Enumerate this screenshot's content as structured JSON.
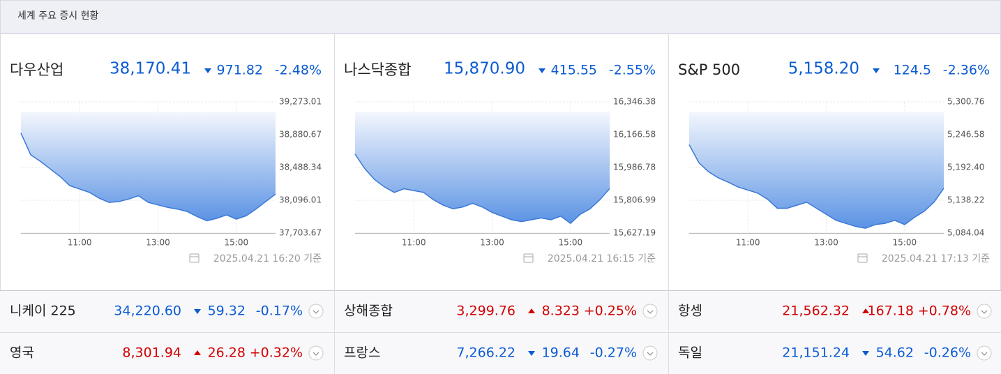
{
  "header": {
    "title": "세계 주요 증시 현황"
  },
  "main_indices": [
    {
      "name": "다우산업",
      "price": "38,170.41",
      "change": "971.82",
      "change_pct": "-2.48%",
      "direction": "down",
      "timestamp": "2025.04.21 16:20 기준",
      "chart_data": {
        "type": "area",
        "color": "#3b78d6",
        "x": [
          9.5,
          9.75,
          10,
          10.25,
          10.5,
          10.75,
          11,
          11.25,
          11.5,
          11.75,
          12,
          12.25,
          12.5,
          12.75,
          13,
          13.25,
          13.5,
          13.75,
          14,
          14.25,
          14.5,
          14.75,
          15,
          15.25,
          15.5,
          15.75,
          16
        ],
        "values": [
          38900,
          38640,
          38560,
          38470,
          38380,
          38270,
          38230,
          38190,
          38120,
          38070,
          38080,
          38110,
          38150,
          38070,
          38040,
          38010,
          37990,
          37960,
          37900,
          37850,
          37880,
          37920,
          37870,
          37910,
          37990,
          38080,
          38170
        ],
        "xlim": [
          9.5,
          16
        ],
        "xticks": [
          {
            "value": 11,
            "label": "11:00"
          },
          {
            "value": 13,
            "label": "13:00"
          },
          {
            "value": 15,
            "label": "15:00"
          }
        ],
        "ylim": [
          37703.67,
          39273.01
        ],
        "yticks": [
          {
            "value": 39273.01,
            "label": "39,273.01"
          },
          {
            "value": 38880.67,
            "label": "38,880.67"
          },
          {
            "value": 38488.34,
            "label": "38,488.34"
          },
          {
            "value": 38096.01,
            "label": "38,096.01"
          },
          {
            "value": 37703.67,
            "label": "37,703.67"
          }
        ]
      }
    },
    {
      "name": "나스닥종합",
      "price": "15,870.90",
      "change": "415.55",
      "change_pct": "-2.55%",
      "direction": "down",
      "timestamp": "2025.04.21 16:15 기준",
      "chart_data": {
        "type": "area",
        "color": "#3b78d6",
        "x": [
          9.5,
          9.75,
          10,
          10.25,
          10.5,
          10.75,
          11,
          11.25,
          11.5,
          11.75,
          12,
          12.25,
          12.5,
          12.75,
          13,
          13.25,
          13.5,
          13.75,
          14,
          14.25,
          14.5,
          14.75,
          15,
          15.25,
          15.5,
          15.75,
          16
        ],
        "values": [
          16060,
          15980,
          15920,
          15880,
          15850,
          15870,
          15860,
          15850,
          15810,
          15780,
          15760,
          15770,
          15790,
          15770,
          15740,
          15720,
          15700,
          15690,
          15700,
          15710,
          15700,
          15720,
          15680,
          15730,
          15760,
          15810,
          15871
        ],
        "xlim": [
          9.5,
          16
        ],
        "xticks": [
          {
            "value": 11,
            "label": "11:00"
          },
          {
            "value": 13,
            "label": "13:00"
          },
          {
            "value": 15,
            "label": "15:00"
          }
        ],
        "ylim": [
          15627.19,
          16346.38
        ],
        "yticks": [
          {
            "value": 16346.38,
            "label": "16,346.38"
          },
          {
            "value": 16166.58,
            "label": "16,166.58"
          },
          {
            "value": 15986.78,
            "label": "15,986.78"
          },
          {
            "value": 15806.99,
            "label": "15,806.99"
          },
          {
            "value": 15627.19,
            "label": "15,627.19"
          }
        ]
      }
    },
    {
      "name": "S&P 500",
      "price": "5,158.20",
      "change": "124.5",
      "change_pct": "-2.36%",
      "direction": "down",
      "timestamp": "2025.04.21 17:13 기준",
      "chart_data": {
        "type": "area",
        "color": "#3b78d6",
        "x": [
          9.5,
          9.75,
          10,
          10.25,
          10.5,
          10.75,
          11,
          11.25,
          11.5,
          11.75,
          12,
          12.25,
          12.5,
          12.75,
          13,
          13.25,
          13.5,
          13.75,
          14,
          14.25,
          14.5,
          14.75,
          15,
          15.25,
          15.5,
          15.75,
          16
        ],
        "values": [
          5230,
          5200,
          5185,
          5175,
          5168,
          5160,
          5155,
          5150,
          5140,
          5125,
          5125,
          5130,
          5135,
          5125,
          5115,
          5105,
          5100,
          5095,
          5092,
          5098,
          5100,
          5105,
          5098,
          5110,
          5120,
          5135,
          5158
        ],
        "xlim": [
          9.5,
          16
        ],
        "xticks": [
          {
            "value": 11,
            "label": "11:00"
          },
          {
            "value": 13,
            "label": "13:00"
          },
          {
            "value": 15,
            "label": "15:00"
          }
        ],
        "ylim": [
          5084.04,
          5300.76
        ],
        "yticks": [
          {
            "value": 5300.76,
            "label": "5,300.76"
          },
          {
            "value": 5246.58,
            "label": "5,246.58"
          },
          {
            "value": 5192.4,
            "label": "5,192.40"
          },
          {
            "value": 5138.22,
            "label": "5,138.22"
          },
          {
            "value": 5084.04,
            "label": "5,084.04"
          }
        ]
      }
    }
  ],
  "other_indices": [
    {
      "name": "니케이 225",
      "price": "34,220.60",
      "change": "59.32",
      "change_pct": "-0.17%",
      "direction": "down"
    },
    {
      "name": "상해종합",
      "price": "3,299.76",
      "change": "8.323",
      "change_pct": "+0.25%",
      "direction": "up"
    },
    {
      "name": "항셍",
      "price": "21,562.32",
      "change": "167.18",
      "change_pct": "+0.78%",
      "direction": "up"
    },
    {
      "name": "영국",
      "price": "8,301.94",
      "change": "26.28",
      "change_pct": "+0.32%",
      "direction": "up"
    },
    {
      "name": "프랑스",
      "price": "7,266.22",
      "change": "19.64",
      "change_pct": "-0.27%",
      "direction": "down"
    },
    {
      "name": "독일",
      "price": "21,151.24",
      "change": "54.62",
      "change_pct": "-0.26%",
      "direction": "down"
    }
  ]
}
